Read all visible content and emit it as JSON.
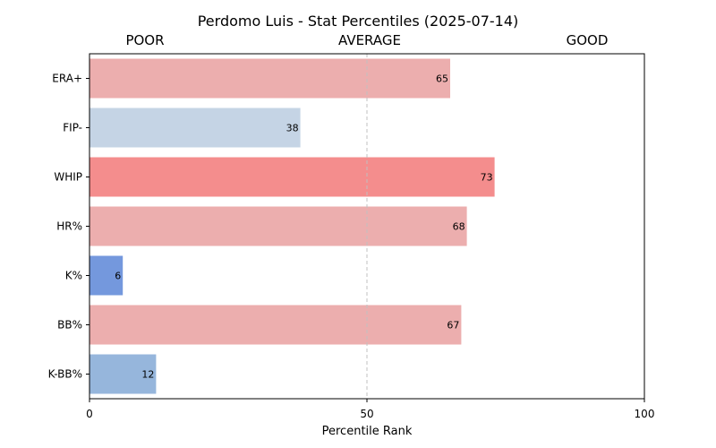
{
  "chart_data": {
    "type": "bar",
    "orientation": "horizontal",
    "title": "Perdomo Luis - Stat Percentiles (2025-07-14)",
    "xlabel": "Percentile Rank",
    "ylabel": "",
    "xlim": [
      0,
      100
    ],
    "xticks": [
      "0",
      "50",
      "100"
    ],
    "zone_labels": [
      "POOR",
      "AVERAGE",
      "GOOD"
    ],
    "reference_line": 50,
    "grid": false,
    "categories": [
      "ERA+",
      "FIP-",
      "WHIP",
      "HR%",
      "K%",
      "BB%",
      "K-BB%"
    ],
    "values": [
      65,
      38,
      73,
      68,
      6,
      67,
      12
    ],
    "colors": [
      "#ecaeae",
      "#c5d4e5",
      "#f48d8d",
      "#ecaeae",
      "#7498dd",
      "#ecaeae",
      "#96b6dc"
    ]
  }
}
